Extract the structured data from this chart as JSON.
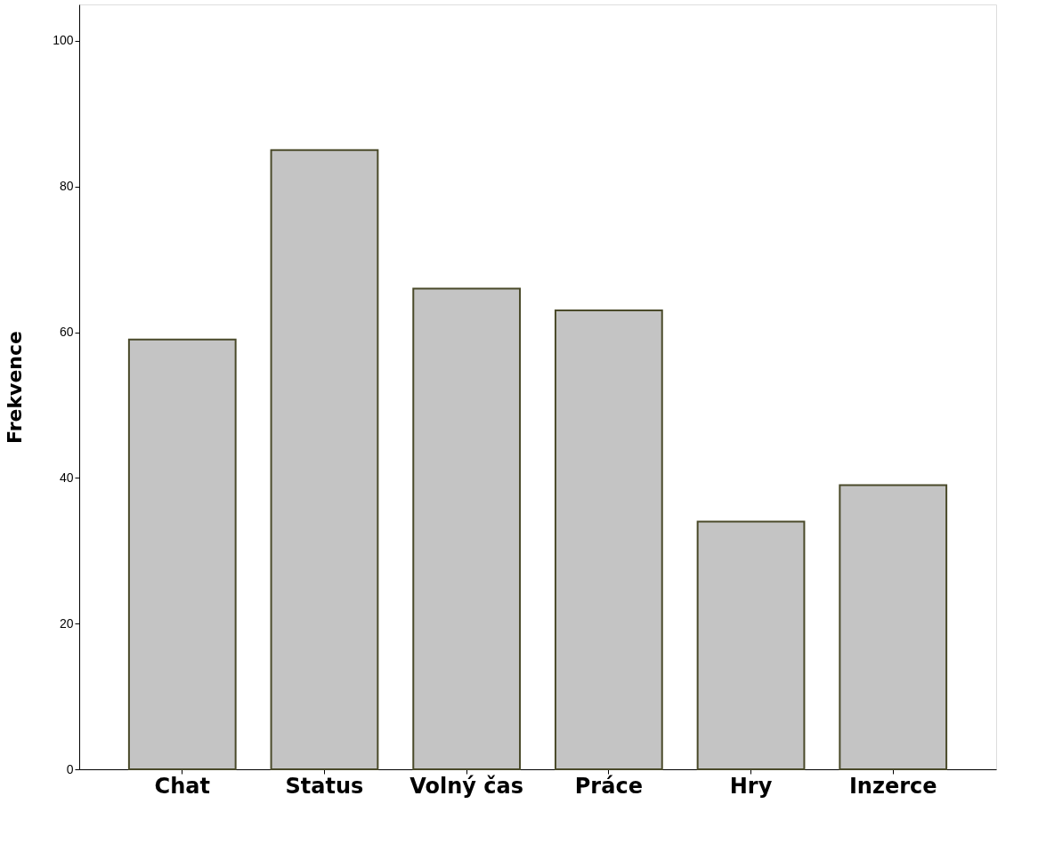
{
  "chart_data": {
    "type": "bar",
    "ylabel": "Frekvence",
    "categories": [
      "Chat",
      "Status",
      "Volný čas",
      "Práce",
      "Hry",
      "Inzerce"
    ],
    "values": [
      59,
      85,
      66,
      63,
      34,
      39
    ],
    "color": "#c4c4c4",
    "ylim": [
      0,
      105
    ],
    "yticks": [
      0,
      20,
      40,
      60,
      80,
      100
    ],
    "grid": false
  }
}
